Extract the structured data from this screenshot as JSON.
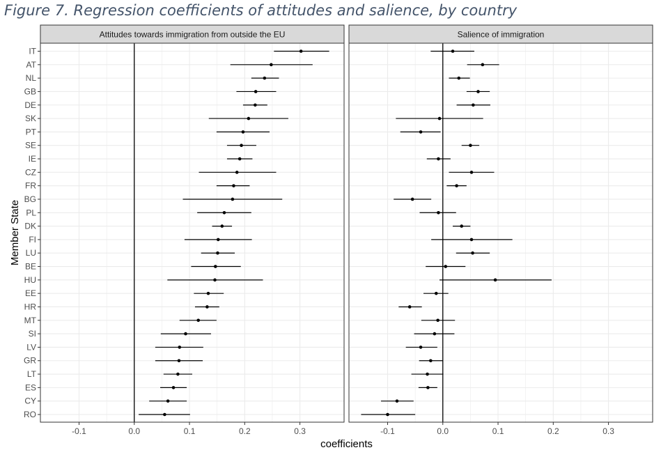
{
  "figure_title": "Figure 7. Regression coefficients of attitudes and salience, by country",
  "colors": {
    "point": "#000000",
    "zero_line": "#000000",
    "panel_border": "#333333",
    "strip_bg": "#d9d9d9",
    "grid": "#ebebeb",
    "title": "#44546a"
  },
  "chart_data": {
    "type": "scatter",
    "style": "coefficient plot with confidence-interval error bars, faceted",
    "xlabel": "coefficients",
    "ylabel": "Member State",
    "xlim": [
      -0.17,
      0.38
    ],
    "x_ticks": [
      "-0.1",
      "0.0",
      "0.1",
      "0.2",
      "0.3"
    ],
    "x_tick_values": [
      -0.1,
      0,
      0.1,
      0.2,
      0.3
    ],
    "grid": true,
    "reference_line_x": 0,
    "categories": [
      "IT",
      "AT",
      "NL",
      "GB",
      "DE",
      "SK",
      "PT",
      "SE",
      "IE",
      "CZ",
      "FR",
      "BG",
      "PL",
      "DK",
      "FI",
      "LU",
      "BE",
      "HU",
      "EE",
      "HR",
      "MT",
      "SI",
      "LV",
      "GR",
      "LT",
      "ES",
      "CY",
      "RO"
    ],
    "panels": [
      {
        "title": "Attitudes towards immigration from outside the EU",
        "estimate": [
          0.302,
          0.248,
          0.236,
          0.22,
          0.219,
          0.207,
          0.197,
          0.194,
          0.191,
          0.186,
          0.18,
          0.178,
          0.163,
          0.159,
          0.152,
          0.151,
          0.147,
          0.146,
          0.134,
          0.132,
          0.116,
          0.093,
          0.082,
          0.081,
          0.079,
          0.071,
          0.061,
          0.055
        ],
        "lower": [
          0.253,
          0.174,
          0.212,
          0.185,
          0.197,
          0.135,
          0.149,
          0.168,
          0.168,
          0.117,
          0.149,
          0.088,
          0.114,
          0.141,
          0.091,
          0.121,
          0.103,
          0.06,
          0.108,
          0.11,
          0.082,
          0.048,
          0.038,
          0.038,
          0.053,
          0.047,
          0.027,
          0.008
        ],
        "upper": [
          0.353,
          0.323,
          0.262,
          0.257,
          0.241,
          0.279,
          0.245,
          0.221,
          0.214,
          0.257,
          0.209,
          0.268,
          0.212,
          0.177,
          0.213,
          0.182,
          0.193,
          0.233,
          0.162,
          0.154,
          0.149,
          0.139,
          0.125,
          0.124,
          0.105,
          0.095,
          0.095,
          0.101
        ]
      },
      {
        "title": "Salience of immigration",
        "estimate": [
          0.018,
          0.072,
          0.029,
          0.064,
          0.055,
          -0.006,
          -0.04,
          0.05,
          -0.008,
          0.052,
          0.025,
          -0.055,
          -0.008,
          0.034,
          0.052,
          0.054,
          0.005,
          0.095,
          -0.012,
          -0.06,
          -0.009,
          -0.015,
          -0.04,
          -0.022,
          -0.028,
          -0.027,
          -0.083,
          -0.1
        ],
        "lower": [
          -0.022,
          0.044,
          0.011,
          0.043,
          0.025,
          -0.085,
          -0.077,
          0.034,
          -0.029,
          0.011,
          0.007,
          -0.089,
          -0.042,
          0.018,
          -0.021,
          0.024,
          -0.031,
          -0.006,
          -0.035,
          -0.08,
          -0.039,
          -0.052,
          -0.067,
          -0.043,
          -0.057,
          -0.044,
          -0.112,
          -0.148
        ],
        "upper": [
          0.057,
          0.102,
          0.049,
          0.085,
          0.086,
          0.073,
          -0.004,
          0.066,
          0.014,
          0.093,
          0.043,
          -0.021,
          0.024,
          0.05,
          0.126,
          0.085,
          0.041,
          0.197,
          0.01,
          -0.038,
          0.022,
          0.021,
          -0.01,
          0.0,
          0.001,
          -0.01,
          -0.053,
          -0.05
        ]
      }
    ]
  }
}
